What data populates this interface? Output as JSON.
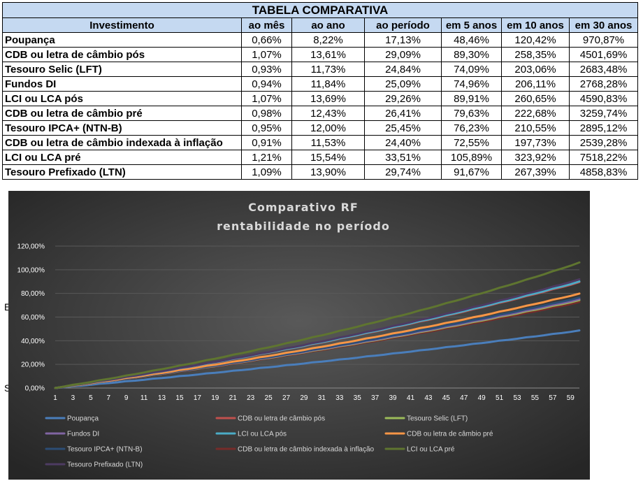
{
  "table": {
    "title": "TABELA COMPARATIVA",
    "headers": [
      "Investimento",
      "ao mês",
      "ao ano",
      "ao período",
      "em 5 anos",
      "em 10 anos",
      "em 30 anos"
    ],
    "rows": [
      [
        "Poupança",
        "0,66%",
        "8,22%",
        "17,13%",
        "48,46%",
        "120,42%",
        "970,87%"
      ],
      [
        "CDB ou letra de câmbio pós",
        "1,07%",
        "13,61%",
        "29,09%",
        "89,30%",
        "258,35%",
        "4501,69%"
      ],
      [
        "Tesouro Selic (LFT)",
        "0,93%",
        "11,73%",
        "24,84%",
        "74,09%",
        "203,06%",
        "2683,48%"
      ],
      [
        "Fundos DI",
        "0,94%",
        "11,84%",
        "25,09%",
        "74,96%",
        "206,11%",
        "2768,28%"
      ],
      [
        "LCI ou LCA pós",
        "1,07%",
        "13,69%",
        "29,26%",
        "89,91%",
        "260,65%",
        "4590,83%"
      ],
      [
        "CDB ou letra de câmbio pré",
        "0,98%",
        "12,43%",
        "26,41%",
        "79,63%",
        "222,68%",
        "3259,74%"
      ],
      [
        "Tesouro IPCA+ (NTN-B)",
        "0,95%",
        "12,00%",
        "25,45%",
        "76,23%",
        "210,55%",
        "2895,12%"
      ],
      [
        "CDB ou letra de câmbio indexada à inflação",
        "0,91%",
        "11,53%",
        "24,40%",
        "72,55%",
        "197,73%",
        "2539,28%"
      ],
      [
        "LCI ou LCA pré",
        "1,21%",
        "15,54%",
        "33,51%",
        "105,89%",
        "323,92%",
        "7518,22%"
      ],
      [
        "Tesouro Prefixado (LTN)",
        "1,09%",
        "13,90%",
        "29,74%",
        "91,67%",
        "267,39%",
        "4858,83%"
      ]
    ]
  },
  "stray_labels": [
    "E",
    "S"
  ],
  "chart_data": {
    "type": "line",
    "title": "Comparativo RF",
    "subtitle": "rentabilidade no período",
    "x_range": [
      1,
      60
    ],
    "x_ticks": [
      "1",
      "3",
      "5",
      "7",
      "9",
      "11",
      "13",
      "15",
      "17",
      "19",
      "21",
      "23",
      "25",
      "27",
      "29",
      "31",
      "33",
      "35",
      "37",
      "39",
      "41",
      "43",
      "45",
      "47",
      "49",
      "51",
      "53",
      "55",
      "57",
      "59"
    ],
    "ylim": [
      0,
      120
    ],
    "y_ticks": [
      "0,00%",
      "20,00%",
      "40,00%",
      "60,00%",
      "80,00%",
      "100,00%",
      "120,00%"
    ],
    "grid": true,
    "legend_position": "bottom",
    "background": "#404040",
    "series": [
      {
        "name": "Poupança",
        "monthly_rate_pct": 0.66,
        "values_at": {
          "1": 0,
          "60": 48.46
        },
        "color": "#4a7ebb"
      },
      {
        "name": "CDB ou letra de câmbio pós",
        "monthly_rate_pct": 1.07,
        "values_at": {
          "1": 0,
          "60": 89.3
        },
        "color": "#c0504d"
      },
      {
        "name": "Tesouro Selic (LFT)",
        "monthly_rate_pct": 0.93,
        "values_at": {
          "1": 0,
          "60": 74.09
        },
        "color": "#9bbb59"
      },
      {
        "name": "Fundos DI",
        "monthly_rate_pct": 0.94,
        "values_at": {
          "1": 0,
          "60": 74.96
        },
        "color": "#8064a2"
      },
      {
        "name": "LCI ou LCA pós",
        "monthly_rate_pct": 1.07,
        "values_at": {
          "1": 0,
          "60": 89.91
        },
        "color": "#4bacc6"
      },
      {
        "name": "CDB ou letra de câmbio pré",
        "monthly_rate_pct": 0.98,
        "values_at": {
          "1": 0,
          "60": 79.63
        },
        "color": "#f79646"
      },
      {
        "name": "Tesouro IPCA+ (NTN-B)",
        "monthly_rate_pct": 0.95,
        "values_at": {
          "1": 0,
          "60": 76.23
        },
        "color": "#2c4d75"
      },
      {
        "name": "CDB ou letra de câmbio indexada à inflação",
        "monthly_rate_pct": 0.91,
        "values_at": {
          "1": 0,
          "60": 72.55
        },
        "color": "#772c2a"
      },
      {
        "name": "LCI ou LCA pré",
        "monthly_rate_pct": 1.21,
        "values_at": {
          "1": 0,
          "60": 105.89
        },
        "color": "#5f7530"
      },
      {
        "name": "Tesouro Prefixado (LTN)",
        "monthly_rate_pct": 1.09,
        "values_at": {
          "1": 0,
          "60": 91.67
        },
        "color": "#4d3b62"
      }
    ]
  }
}
